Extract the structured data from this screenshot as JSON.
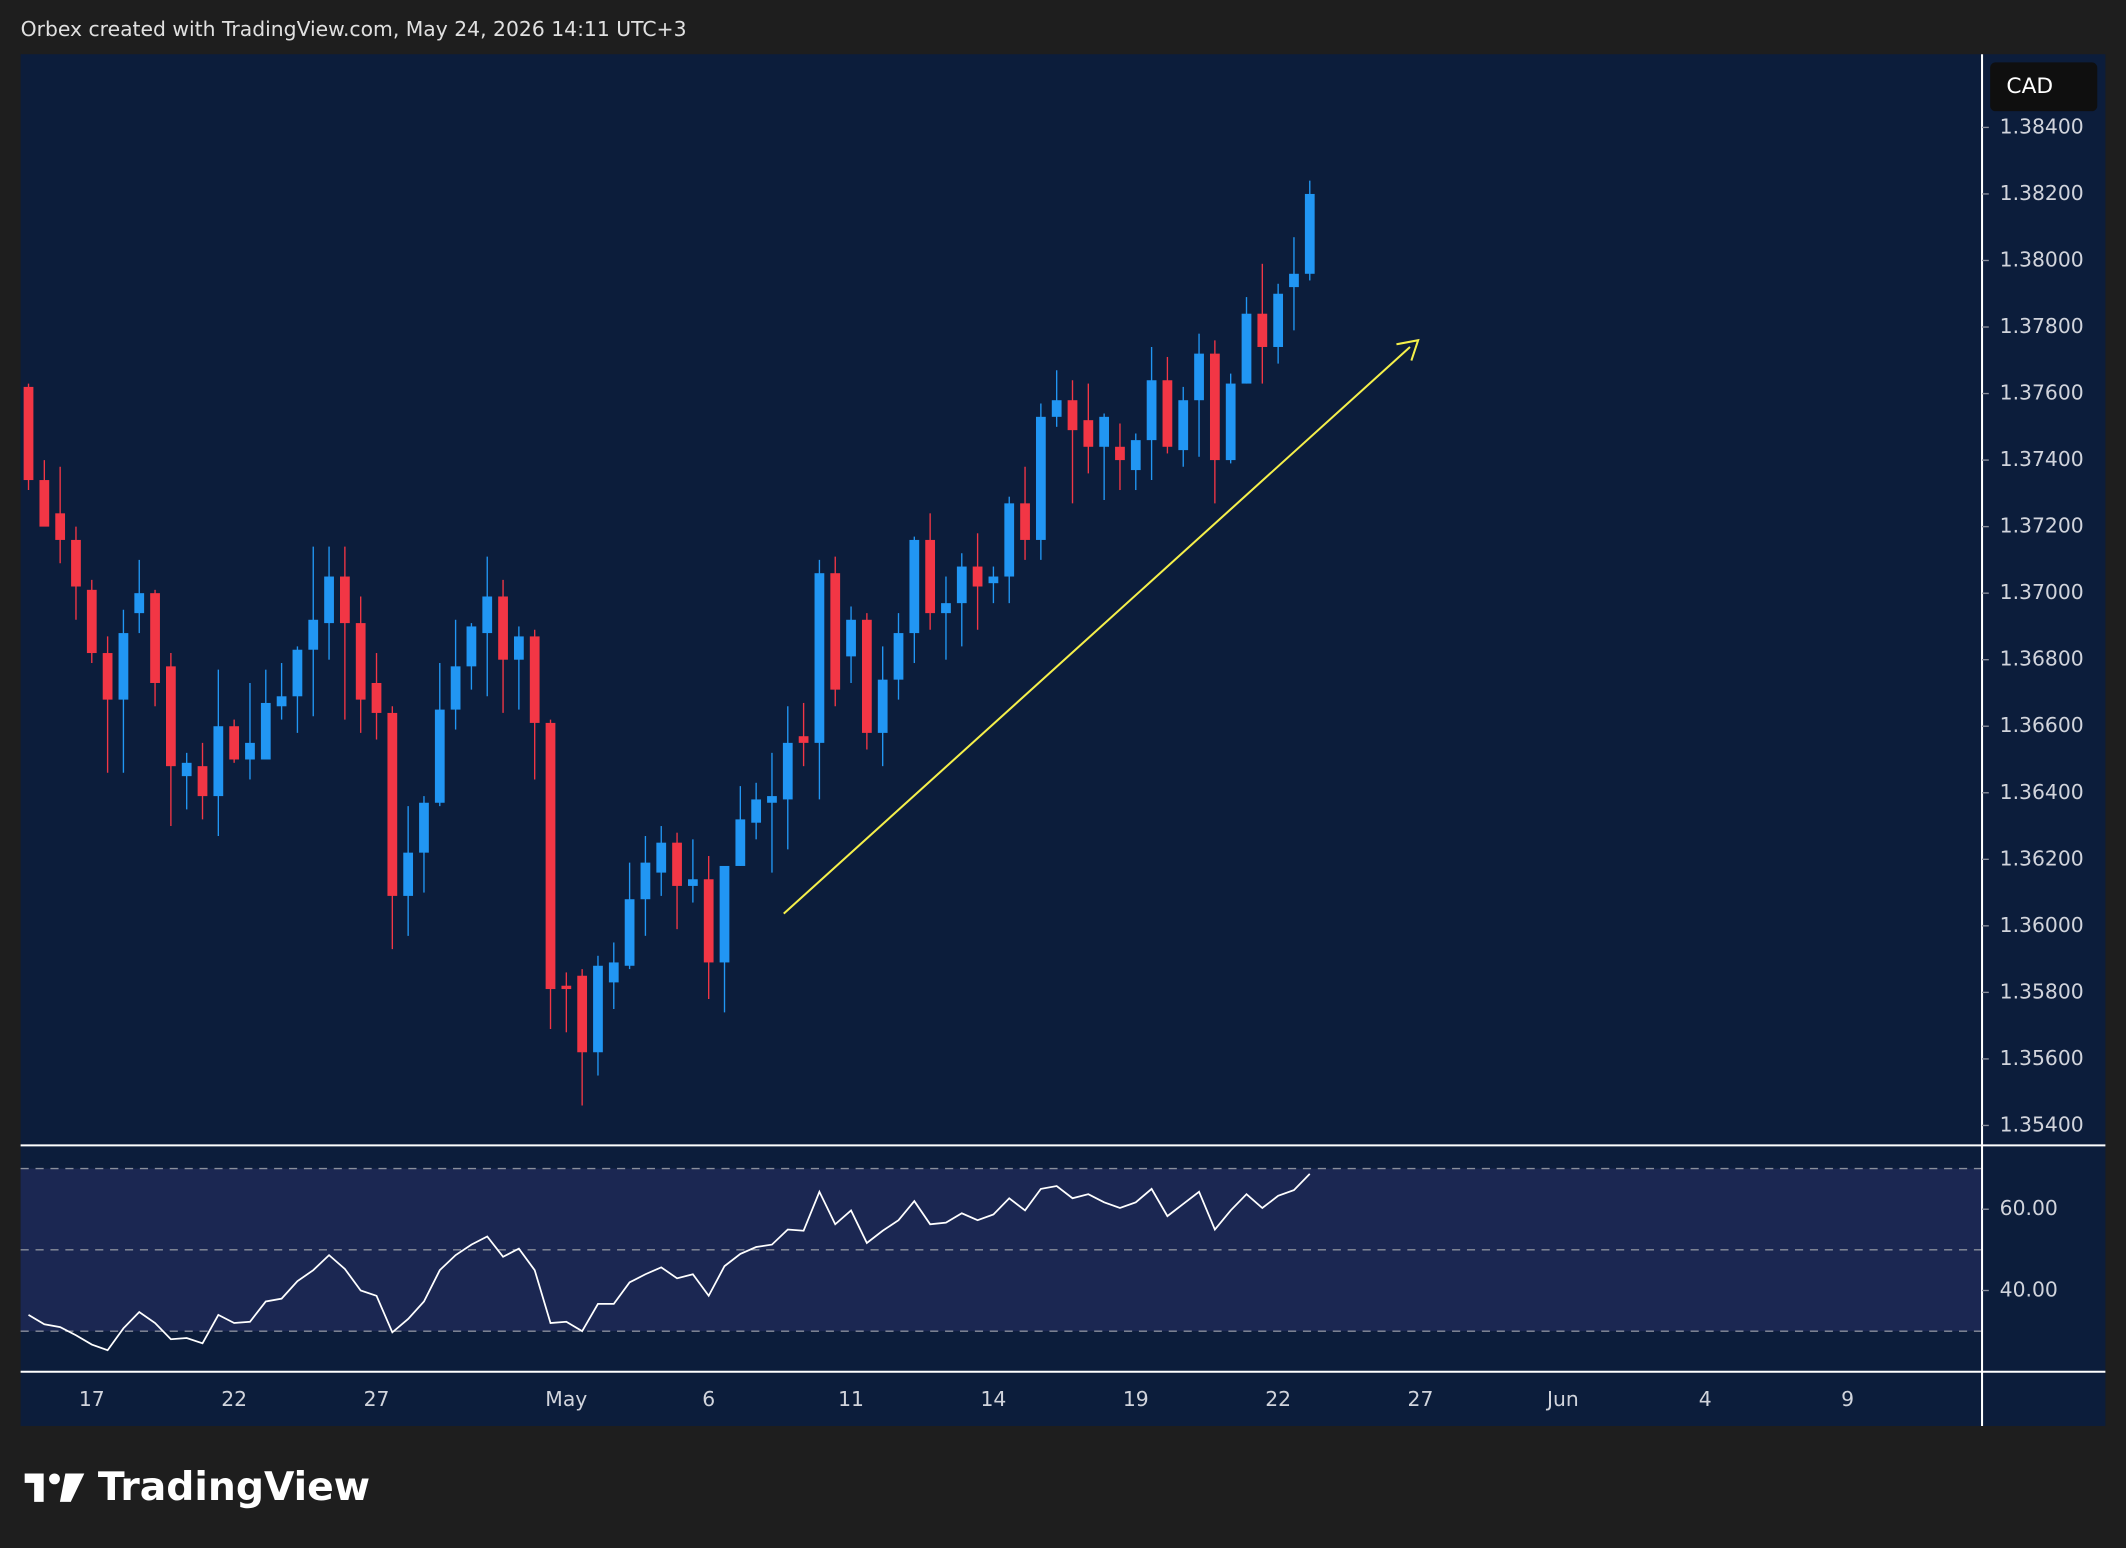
{
  "chart_data": {
    "type": "candlestick",
    "title": "Orbex created with TradingView.com, May 24, 2026 14:11 UTC+3",
    "currency": "CAD",
    "brand": "TradingView",
    "categories": [
      null,
      null,
      null,
      null,
      "17",
      null,
      null,
      null,
      null,
      null,
      null,
      null,
      null,
      "22",
      null,
      null,
      null,
      null,
      null,
      null,
      null,
      null,
      "27",
      null,
      null,
      null,
      null,
      null,
      null,
      null,
      null,
      null,
      null,
      null,
      "May",
      null,
      null,
      null,
      null,
      null,
      null,
      null,
      null,
      "6",
      null,
      null,
      null,
      null,
      null,
      null,
      null,
      null,
      "11",
      null,
      null,
      null,
      null,
      null,
      null,
      null,
      null,
      "14",
      null,
      null,
      null,
      null,
      null,
      null,
      null,
      null,
      "19",
      null,
      null,
      null,
      null,
      null,
      null,
      null,
      null,
      "22",
      null,
      null,
      null,
      null,
      null,
      null,
      null,
      null,
      "27",
      null,
      null,
      null,
      null,
      null,
      null,
      null,
      null,
      "Jun",
      null,
      null,
      null,
      null,
      null,
      null,
      null,
      null,
      "4",
      null,
      null,
      null,
      null,
      null,
      null,
      null,
      null,
      "9",
      null,
      null,
      null,
      null,
      null,
      null,
      null,
      null
    ],
    "open": [
      1.3762,
      1.3734,
      1.3724,
      1.3716,
      1.3701,
      1.3682,
      1.3668,
      1.3694,
      1.37,
      1.3678,
      1.3645,
      1.3648,
      1.3639,
      1.366,
      1.365,
      1.365,
      1.3666,
      1.3669,
      1.3683,
      1.3691,
      1.3705,
      1.3691,
      1.3673,
      1.3664,
      1.3609,
      1.3622,
      1.3637,
      1.3665,
      1.3678,
      1.3688,
      1.3699,
      1.368,
      1.3687,
      1.3661,
      1.3582,
      1.3585,
      1.3562,
      1.3583,
      1.3588,
      1.3608,
      1.3616,
      1.3625,
      1.3612,
      1.3614,
      1.3589,
      1.3618,
      1.3631,
      1.3637,
      1.3638,
      1.3657,
      1.3655,
      1.3706,
      1.3681,
      1.3692,
      1.3658,
      1.3674,
      1.3688,
      1.3716,
      1.3694,
      1.3697,
      1.3708,
      1.3703,
      1.3705,
      1.3727,
      1.3716,
      1.3753,
      1.3758,
      1.3752,
      1.3744,
      1.3744,
      1.3737,
      1.3746,
      1.3764,
      1.3743,
      1.3758,
      1.3772,
      1.374,
      1.3763,
      1.3784,
      1.3774,
      1.3792,
      1.3796,
      null,
      null,
      null,
      null,
      null,
      null,
      null,
      null,
      null,
      null,
      null,
      null,
      null,
      null,
      null,
      null,
      null,
      null,
      null,
      null,
      null,
      null,
      null,
      null,
      null,
      null,
      null,
      null,
      null,
      null,
      null,
      null,
      null,
      null,
      null,
      null,
      null,
      null,
      null,
      null,
      null,
      null
    ],
    "high": [
      1.3763,
      1.374,
      1.3738,
      1.372,
      1.3704,
      1.3687,
      1.3695,
      1.371,
      1.3701,
      1.3682,
      1.3652,
      1.3655,
      1.3677,
      1.3662,
      1.3673,
      1.3677,
      1.3679,
      1.3684,
      1.3714,
      1.3714,
      1.3714,
      1.3699,
      1.3682,
      1.3666,
      1.3636,
      1.3639,
      1.3679,
      1.3692,
      1.3691,
      1.3711,
      1.3704,
      1.369,
      1.3689,
      1.3662,
      1.3586,
      1.3587,
      1.3591,
      1.3595,
      1.3619,
      1.3627,
      1.363,
      1.3628,
      1.3626,
      1.3621,
      1.3618,
      1.3642,
      1.3643,
      1.3652,
      1.3666,
      1.3667,
      1.371,
      1.3711,
      1.3696,
      1.3694,
      1.3684,
      1.3694,
      1.3717,
      1.3724,
      1.3705,
      1.3712,
      1.3718,
      1.3708,
      1.3729,
      1.3738,
      1.3757,
      1.3767,
      1.3764,
      1.3763,
      1.3754,
      1.3751,
      1.3748,
      1.3774,
      1.3771,
      1.3762,
      1.3778,
      1.3776,
      1.3766,
      1.3789,
      1.3799,
      1.3793,
      1.3807,
      1.3824,
      null,
      null,
      null,
      null,
      null,
      null,
      null,
      null,
      null,
      null,
      null,
      null,
      null,
      null,
      null,
      null,
      null,
      null,
      null,
      null,
      null,
      null,
      null,
      null,
      null,
      null,
      null,
      null,
      null,
      null,
      null,
      null,
      null,
      null,
      null,
      null,
      null,
      null,
      null,
      null,
      null,
      null
    ],
    "low": [
      1.3731,
      1.3721,
      1.3709,
      1.3692,
      1.3679,
      1.3646,
      1.3646,
      1.3688,
      1.3666,
      1.363,
      1.3635,
      1.3632,
      1.3627,
      1.3649,
      1.3644,
      1.365,
      1.3662,
      1.3658,
      1.3663,
      1.368,
      1.3662,
      1.3658,
      1.3656,
      1.3593,
      1.3597,
      1.361,
      1.3636,
      1.3659,
      1.3671,
      1.3669,
      1.3664,
      1.3665,
      1.3644,
      1.3569,
      1.3568,
      1.3546,
      1.3555,
      1.3575,
      1.3587,
      1.3597,
      1.3609,
      1.3599,
      1.3607,
      1.3578,
      1.3574,
      1.3618,
      1.3626,
      1.3616,
      1.3623,
      1.3648,
      1.3638,
      1.3666,
      1.3673,
      1.3653,
      1.3648,
      1.3668,
      1.3679,
      1.3689,
      1.368,
      1.3684,
      1.3689,
      1.3697,
      1.3697,
      1.371,
      1.371,
      1.375,
      1.3727,
      1.3736,
      1.3728,
      1.3731,
      1.3731,
      1.3734,
      1.3742,
      1.3738,
      1.3741,
      1.3727,
      1.3739,
      1.3763,
      1.3763,
      1.3769,
      1.3779,
      1.3794,
      null,
      null,
      null,
      null,
      null,
      null,
      null,
      null,
      null,
      null,
      null,
      null,
      null,
      null,
      null,
      null,
      null,
      null,
      null,
      null,
      null,
      null,
      null,
      null,
      null,
      null,
      null,
      null,
      null,
      null,
      null,
      null,
      null,
      null,
      null,
      null,
      null,
      null,
      null,
      null,
      null,
      null
    ],
    "close": [
      1.3734,
      1.372,
      1.3716,
      1.3702,
      1.3682,
      1.3668,
      1.3688,
      1.37,
      1.3673,
      1.3648,
      1.3649,
      1.3639,
      1.366,
      1.365,
      1.3655,
      1.3667,
      1.3669,
      1.3683,
      1.3692,
      1.3705,
      1.3691,
      1.3668,
      1.3664,
      1.3609,
      1.3622,
      1.3637,
      1.3665,
      1.3678,
      1.369,
      1.3699,
      1.368,
      1.3687,
      1.3661,
      1.3581,
      1.3581,
      1.3562,
      1.3588,
      1.3589,
      1.3608,
      1.3619,
      1.3625,
      1.3612,
      1.3614,
      1.3589,
      1.3618,
      1.3632,
      1.3638,
      1.3639,
      1.3655,
      1.3655,
      1.3706,
      1.3671,
      1.3692,
      1.3658,
      1.3674,
      1.3688,
      1.3716,
      1.3694,
      1.3697,
      1.3708,
      1.3702,
      1.3705,
      1.3727,
      1.3716,
      1.3753,
      1.3758,
      1.3749,
      1.3744,
      1.3753,
      1.374,
      1.3746,
      1.3764,
      1.3744,
      1.3758,
      1.3772,
      1.374,
      1.3763,
      1.3784,
      1.3774,
      1.379,
      1.3796,
      1.382,
      null,
      null,
      null,
      null,
      null,
      null,
      null,
      null,
      null,
      null,
      null,
      null,
      null,
      null,
      null,
      null,
      null,
      null,
      null,
      null,
      null,
      null,
      null,
      null,
      null,
      null,
      null,
      null,
      null,
      null,
      null,
      null,
      null,
      null,
      null,
      null,
      null,
      null,
      null,
      null,
      null,
      null
    ],
    "up_color": "#2196f3",
    "down_color": "#f23645",
    "ylim": [
      1.3534,
      1.3862
    ],
    "yticks": [
      {
        "value": 1.384,
        "label": "1.38400"
      },
      {
        "value": 1.382,
        "label": "1.38200"
      },
      {
        "value": 1.38,
        "label": "1.38000"
      },
      {
        "value": 1.378,
        "label": "1.37800"
      },
      {
        "value": 1.376,
        "label": "1.37600"
      },
      {
        "value": 1.374,
        "label": "1.37400"
      },
      {
        "value": 1.372,
        "label": "1.37200"
      },
      {
        "value": 1.37,
        "label": "1.37000"
      },
      {
        "value": 1.368,
        "label": "1.36800"
      },
      {
        "value": 1.366,
        "label": "1.36600"
      },
      {
        "value": 1.364,
        "label": "1.36400"
      },
      {
        "value": 1.362,
        "label": "1.36200"
      },
      {
        "value": 1.36,
        "label": "1.36000"
      },
      {
        "value": 1.358,
        "label": "1.35800"
      },
      {
        "value": 1.356,
        "label": "1.35600"
      },
      {
        "value": 1.354,
        "label": "1.35400"
      }
    ],
    "indicator": {
      "values": [
        34,
        31.7,
        31,
        29,
        26.7,
        25.3,
        30.7,
        34.7,
        32,
        28,
        28.3,
        27,
        34,
        32,
        32.3,
        37.3,
        38,
        42.3,
        45,
        48.7,
        45.3,
        40,
        38.7,
        29.7,
        33,
        37.3,
        45,
        48.7,
        51.3,
        53.3,
        48.3,
        50.3,
        45,
        32,
        32.3,
        30,
        36.7,
        36.7,
        42,
        44,
        45.7,
        43,
        44,
        38.7,
        46,
        49,
        50.7,
        51.3,
        55,
        54.7,
        64.3,
        56.3,
        59.7,
        51.7,
        54.7,
        57.3,
        62,
        56.3,
        56.7,
        59,
        57.3,
        58.7,
        62.7,
        59.7,
        65,
        65.7,
        62.7,
        63.7,
        61.7,
        60.3,
        61.7,
        65,
        58.3,
        61.3,
        64.3,
        55,
        59.7,
        63.7,
        60.3,
        63.3,
        64.7,
        68.7,
        null,
        null,
        null,
        null,
        null,
        null,
        null,
        null,
        null,
        null,
        null,
        null,
        null,
        null,
        null,
        null,
        null,
        null,
        null,
        null,
        null,
        null,
        null,
        null,
        null,
        null,
        null,
        null,
        null,
        null,
        null,
        null,
        null,
        null,
        null,
        null,
        null,
        null,
        null,
        null,
        null,
        null
      ],
      "color": "#ffffff",
      "ylim": [
        20,
        75.7
      ],
      "yticks": [
        {
          "value": 60,
          "label": "60.00"
        },
        {
          "value": 40,
          "label": "40.00"
        }
      ],
      "levels": [
        70,
        50,
        30
      ],
      "band_color": "#1b2752"
    }
  }
}
